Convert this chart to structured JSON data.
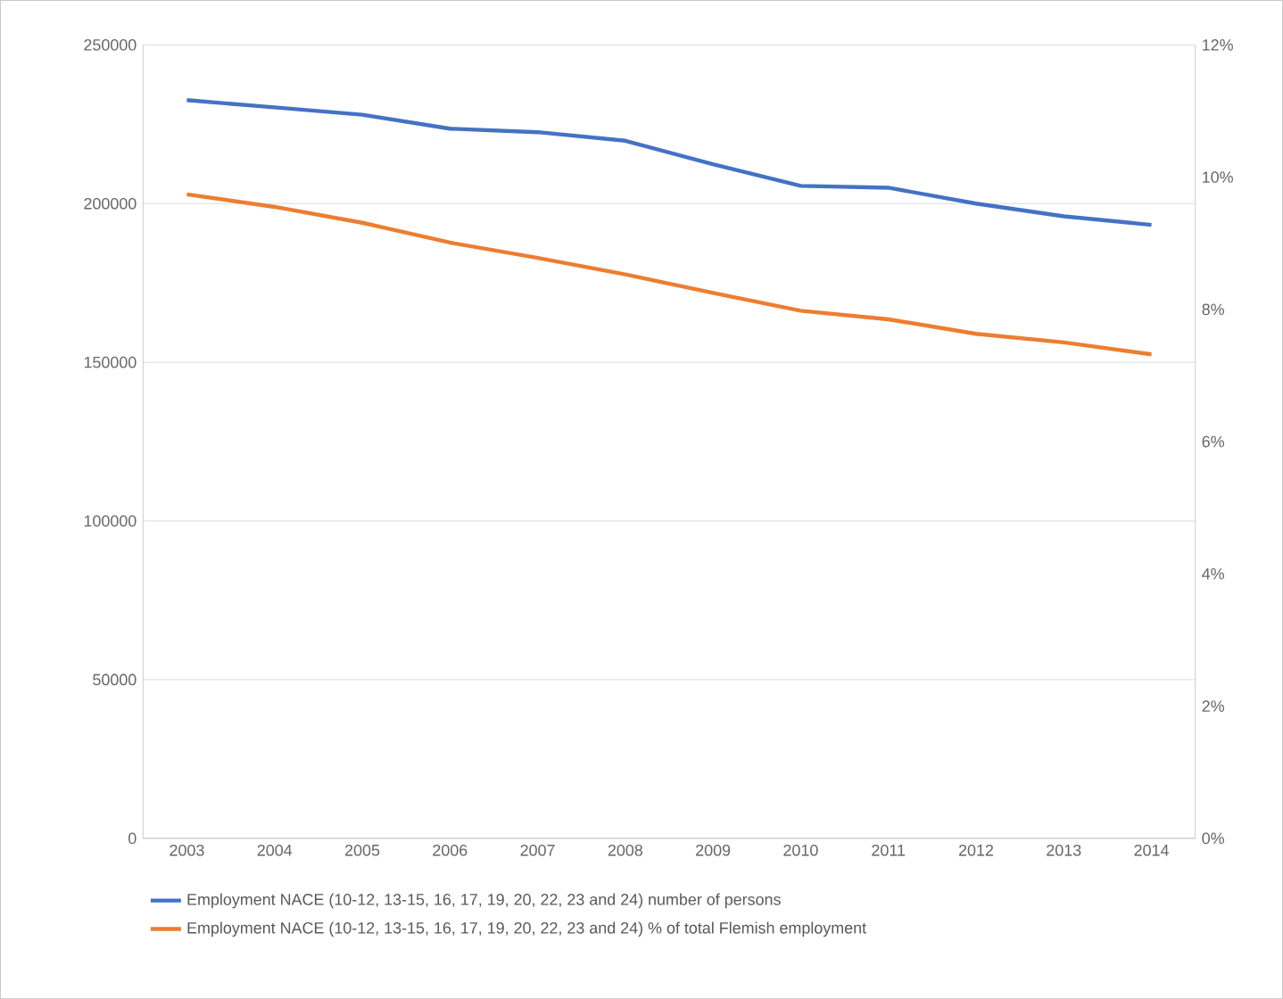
{
  "chart_data": {
    "type": "line",
    "categories": [
      "2003",
      "2004",
      "2005",
      "2006",
      "2007",
      "2008",
      "2009",
      "2010",
      "2011",
      "2012",
      "2013",
      "2014"
    ],
    "series": [
      {
        "name": "Employment NACE (10-12, 13-15, 16, 17, 19, 20, 22, 23 and 24)  number of persons",
        "color": "#4472c4",
        "values": [
          232600,
          230300,
          228000,
          223600,
          222500,
          219800,
          212400,
          205600,
          205000,
          200000,
          196000,
          193300
        ]
      },
      {
        "name": "Employment NACE (10-12, 13-15, 16, 17, 19, 20, 22, 23 and 24)  % of total Flemish employment",
        "color": "#ed7d31",
        "axis": "y2",
        "values": [
          9.74,
          9.55,
          9.31,
          9.01,
          8.78,
          8.53,
          8.25,
          7.98,
          7.85,
          7.63,
          7.5,
          7.32
        ]
      }
    ],
    "ylim": [
      0,
      250000
    ],
    "yticks": [
      0,
      50000,
      100000,
      150000,
      200000,
      250000
    ],
    "y2lim": [
      0,
      12
    ],
    "y2ticks": [
      {
        "value": 0,
        "label": "0%"
      },
      {
        "value": 2,
        "label": "2%"
      },
      {
        "value": 4,
        "label": "4%"
      },
      {
        "value": 6,
        "label": "6%"
      },
      {
        "value": 8,
        "label": "8%"
      },
      {
        "value": 10,
        "label": "10%"
      },
      {
        "value": 12,
        "label": "12%"
      }
    ],
    "grid": "y",
    "legend": "bottom",
    "marker": "none"
  }
}
